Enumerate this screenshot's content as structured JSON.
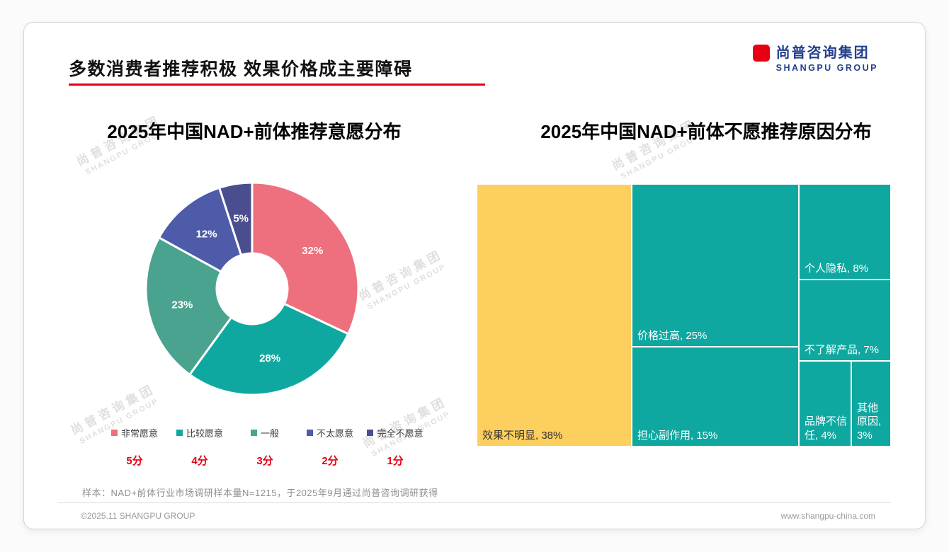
{
  "page": {
    "title": "多数消费者推荐积极 效果价格成主要障碍",
    "logo": {
      "cn": "尚普咨询集团",
      "en": "SHANGPU GROUP"
    },
    "watermark": {
      "cn": "尚普咨询集团",
      "en": "SHANGPU GROUP"
    },
    "sample_note": "样本：NAD+前体行业市场调研样本量N=1215，于2025年9月通过尚普咨询调研获得",
    "footer": {
      "left": "©2025.11 SHANGPU GROUP",
      "right": "www.shangpu-china.com"
    },
    "accent_red": "#e60012",
    "logo_blue": "#24408e"
  },
  "chart_data": [
    {
      "type": "pie",
      "subtype": "donut",
      "title": "2025年中国NAD+前体推荐意愿分布",
      "categories": [
        "非常愿意",
        "比较愿意",
        "一般",
        "不太愿意",
        "完全不愿意"
      ],
      "values": [
        32,
        28,
        23,
        12,
        5
      ],
      "unit": "%",
      "colors": [
        "#ee6f7d",
        "#0fa8a1",
        "#4aa38f",
        "#4d5ba8",
        "#4b4e8e"
      ],
      "score_labels": [
        "5分",
        "4分",
        "3分",
        "2分",
        "1分"
      ],
      "legend_position": "bottom",
      "label_color": "#ffffff"
    },
    {
      "type": "treemap",
      "title": "2025年中国NAD+前体不愿推荐原因分布",
      "items": [
        {
          "label": "效果不明显",
          "value": 38,
          "color": "#fccf5e",
          "text_color": "#333333"
        },
        {
          "label": "价格过高",
          "value": 25,
          "color": "#0fa8a1",
          "text_color": "#ffffff"
        },
        {
          "label": "担心副作用",
          "value": 15,
          "color": "#0fa8a1",
          "text_color": "#ffffff"
        },
        {
          "label": "个人隐私",
          "value": 8,
          "color": "#0fa8a1",
          "text_color": "#ffffff"
        },
        {
          "label": "不了解产品",
          "value": 7,
          "color": "#0fa8a1",
          "text_color": "#ffffff"
        },
        {
          "label": "品牌不信任",
          "value": 4,
          "color": "#0fa8a1",
          "text_color": "#ffffff"
        },
        {
          "label": "其他原因",
          "value": 3,
          "color": "#0fa8a1",
          "text_color": "#ffffff"
        }
      ]
    }
  ]
}
